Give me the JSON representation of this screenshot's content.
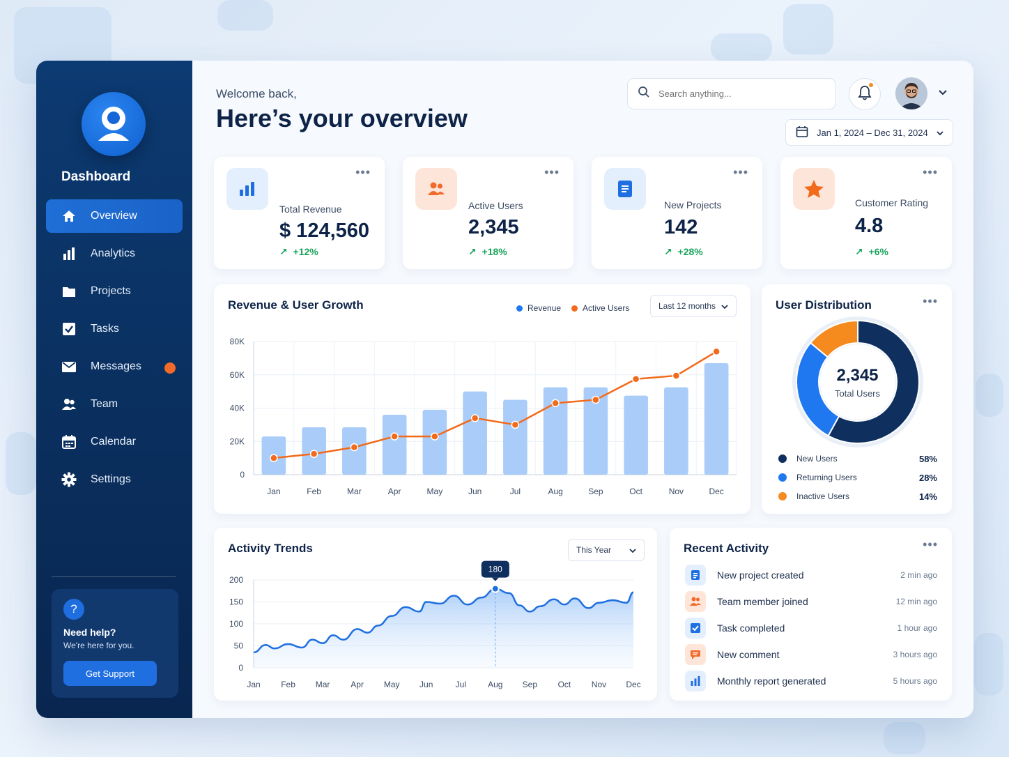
{
  "sidebar": {
    "title": "Dashboard",
    "items": [
      {
        "label": "Overview",
        "icon": "home-icon",
        "active": true
      },
      {
        "label": "Analytics",
        "icon": "bar-chart-icon"
      },
      {
        "label": "Projects",
        "icon": "folder-icon"
      },
      {
        "label": "Tasks",
        "icon": "checkbox-icon"
      },
      {
        "label": "Messages",
        "icon": "mail-icon",
        "badge": true
      },
      {
        "label": "Team",
        "icon": "users-icon"
      },
      {
        "label": "Calendar",
        "icon": "calendar-icon"
      },
      {
        "label": "Settings",
        "icon": "gear-icon"
      }
    ],
    "help": {
      "title": "Need help?",
      "subtitle": "We're here for you.",
      "button": "Get Support"
    }
  },
  "header": {
    "welcome": "Welcome back,",
    "title": "Here’s your overview",
    "search_placeholder": "Search anything...",
    "date_range": "Jan 1, 2024 – Dec 31, 2024"
  },
  "kpis": [
    {
      "label": "Total Revenue",
      "value": "$ 124,560",
      "change": "+12%",
      "icon": "bar-chart-icon",
      "color": "#1f6fe0"
    },
    {
      "label": "Active Users",
      "value": "2,345",
      "change": "+18%",
      "icon": "users-icon",
      "color": "#f26a2a"
    },
    {
      "label": "New Projects",
      "value": "142",
      "change": "+28%",
      "icon": "document-icon",
      "color": "#1f6fe0"
    },
    {
      "label": "Customer Rating",
      "value": "4.8",
      "change": "+6%",
      "icon": "star-icon",
      "color": "#f26a2a"
    }
  ],
  "revenue_panel": {
    "title": "Revenue & User Growth",
    "legend": [
      "Revenue",
      "Active Users"
    ],
    "range": "Last 12 months"
  },
  "distribution_panel": {
    "title": "User Distribution",
    "center_value": "2,345",
    "center_label": "Total Users",
    "rows": [
      {
        "label": "New Users",
        "pct": "58%",
        "color": "#0f2f5e"
      },
      {
        "label": "Returning Users",
        "pct": "28%",
        "color": "#1f78f0"
      },
      {
        "label": "Inactive Users",
        "pct": "14%",
        "color": "#f58a1f"
      }
    ]
  },
  "activity_panel": {
    "title": "Activity Trends",
    "range": "This Year"
  },
  "recent_panel": {
    "title": "Recent Activity",
    "items": [
      {
        "text": "New project created",
        "time": "2 min ago",
        "icon": "document-icon",
        "tone": "blue"
      },
      {
        "text": "Team member joined",
        "time": "12 min ago",
        "icon": "users-icon",
        "tone": "orange"
      },
      {
        "text": "Task completed",
        "time": "1 hour ago",
        "icon": "checkbox-icon",
        "tone": "blue"
      },
      {
        "text": "New comment",
        "time": "3 hours ago",
        "icon": "comment-icon",
        "tone": "orange"
      },
      {
        "text": "Monthly report generated",
        "time": "5 hours ago",
        "icon": "bar-chart-icon",
        "tone": "blue"
      }
    ]
  },
  "chart_data": [
    {
      "type": "bar",
      "title": "Revenue & User Growth",
      "categories": [
        "Jan",
        "Feb",
        "Mar",
        "Apr",
        "May",
        "Jun",
        "Jul",
        "Aug",
        "Sep",
        "Oct",
        "Nov",
        "Dec"
      ],
      "yticks": [
        "0",
        "20K",
        "40K",
        "60K",
        "80K"
      ],
      "ylim": [
        0,
        80000
      ],
      "series": [
        {
          "name": "Revenue",
          "type": "bar",
          "color": "#a9cdf8",
          "values": [
            23000,
            28500,
            28500,
            36000,
            39000,
            50000,
            45000,
            52500,
            52500,
            47500,
            52500,
            67000
          ]
        },
        {
          "name": "Active Users",
          "type": "line",
          "color": "#f26a1b",
          "values": [
            10000,
            12500,
            16500,
            23000,
            23000,
            34000,
            30000,
            43000,
            45000,
            57500,
            59500,
            74000
          ]
        }
      ],
      "grid": true,
      "legend": "top-right"
    },
    {
      "type": "pie",
      "title": "User Distribution",
      "labels": [
        "New Users",
        "Returning Users",
        "Inactive Users"
      ],
      "values": [
        58,
        28,
        14
      ],
      "colors": [
        "#0f2f5e",
        "#1f78f0",
        "#f58a1f"
      ]
    },
    {
      "type": "area",
      "title": "Activity Trends",
      "categories": [
        "Jan",
        "Feb",
        "Mar",
        "Apr",
        "May",
        "Jun",
        "Jul",
        "Aug",
        "Sep",
        "Oct",
        "Nov",
        "Dec"
      ],
      "yticks": [
        "200",
        "150",
        "100",
        "50",
        "0"
      ],
      "ylim": [
        0,
        200
      ],
      "x": [
        0,
        0.35,
        0.6,
        1,
        1.4,
        1.7,
        2,
        2.3,
        2.6,
        3,
        3.3,
        3.6,
        4,
        4.4,
        4.8,
        5,
        5.4,
        5.8,
        6.2,
        6.6,
        7,
        7.4,
        7.7,
        8,
        8.3,
        8.7,
        9,
        9.3,
        9.7,
        10,
        10.4,
        10.8,
        11
      ],
      "values": [
        35,
        52,
        44,
        54,
        46,
        64,
        56,
        74,
        64,
        88,
        80,
        96,
        118,
        138,
        128,
        150,
        146,
        164,
        144,
        160,
        180,
        170,
        142,
        128,
        140,
        156,
        144,
        158,
        136,
        148,
        154,
        148,
        172
      ],
      "series_color": "#1f6fe0",
      "highlight": {
        "category": "Aug",
        "value": 180,
        "label": "180"
      },
      "grid": true
    }
  ]
}
